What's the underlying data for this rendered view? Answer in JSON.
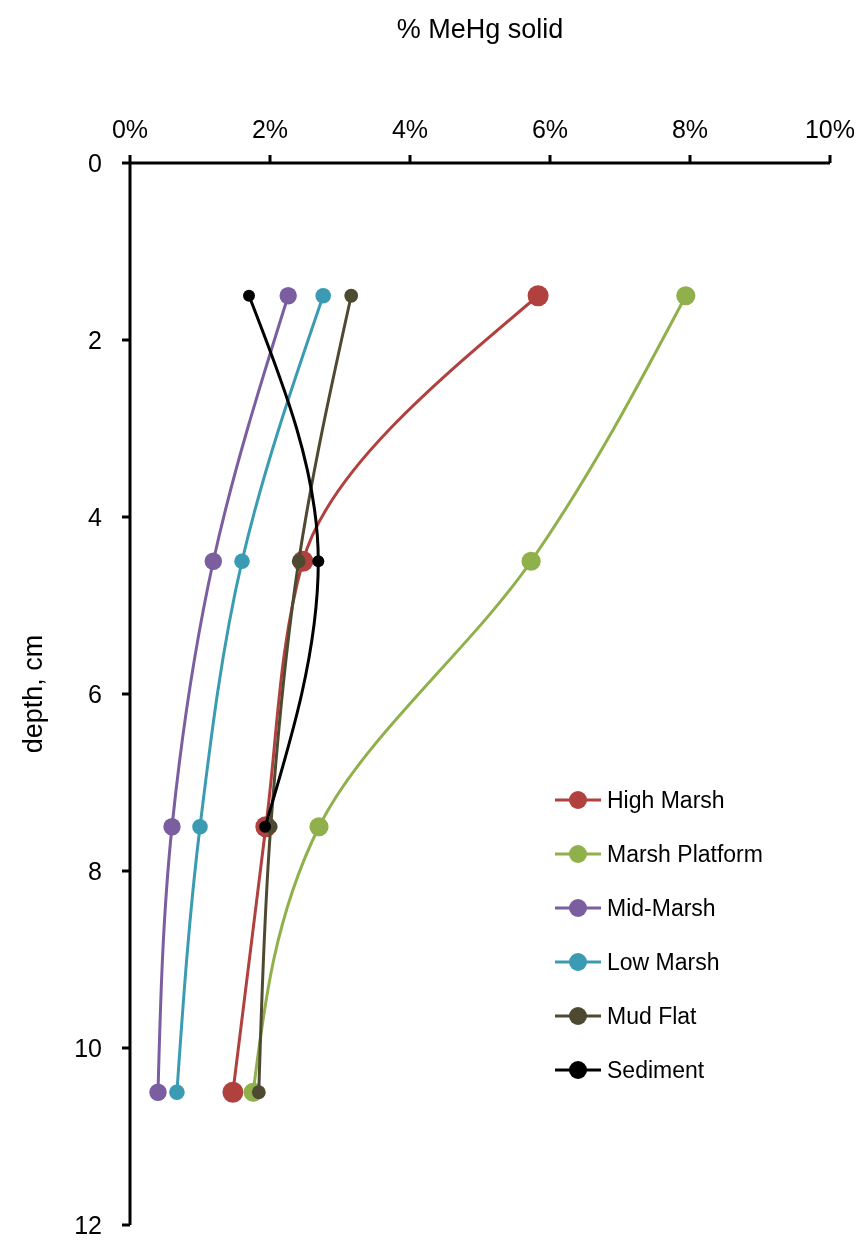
{
  "chart_data": {
    "type": "line",
    "xlabel": "% MeHg solid",
    "ylabel": "depth, cm",
    "xlim": [
      0,
      10
    ],
    "xticks": [
      {
        "value": 0,
        "label": "0%"
      },
      {
        "value": 2,
        "label": "2%"
      },
      {
        "value": 4,
        "label": "4%"
      },
      {
        "value": 6,
        "label": "6%"
      },
      {
        "value": 8,
        "label": "8%"
      },
      {
        "value": 10,
        "label": "10%"
      }
    ],
    "ylim": [
      12,
      0
    ],
    "yticks": [
      0,
      2,
      4,
      6,
      8,
      10,
      12
    ],
    "grid": false,
    "legend": "right",
    "marker": "circle",
    "line_style": "solid",
    "series": [
      {
        "name": "High Marsh",
        "color": "#b0413e",
        "x": [
          5.83,
          2.47,
          1.94,
          1.47
        ],
        "values": [
          1.5,
          4.5,
          7.5,
          10.5
        ]
      },
      {
        "name": "Marsh Platform",
        "color": "#8fb04a",
        "x": [
          7.94,
          5.73,
          2.7,
          1.76
        ],
        "values": [
          1.5,
          4.5,
          7.5,
          10.5
        ]
      },
      {
        "name": "Mid-Marsh",
        "color": "#7b5ea0",
        "x": [
          2.26,
          1.19,
          0.6,
          0.4
        ],
        "values": [
          1.5,
          4.5,
          7.5,
          10.5
        ]
      },
      {
        "name": "Low Marsh",
        "color": "#3b9bb3",
        "x": [
          2.76,
          1.6,
          1.0,
          0.67
        ],
        "values": [
          1.5,
          4.5,
          7.5,
          10.5
        ]
      },
      {
        "name": "Mud Flat",
        "color": "#4e4a32",
        "x": [
          3.16,
          2.41,
          2.01,
          1.84
        ],
        "values": [
          1.5,
          4.5,
          7.5,
          10.5
        ]
      },
      {
        "name": "Sediment",
        "color": "#000000",
        "x": [
          1.7,
          2.69,
          1.93
        ],
        "values": [
          1.5,
          4.5,
          7.5
        ]
      }
    ]
  }
}
